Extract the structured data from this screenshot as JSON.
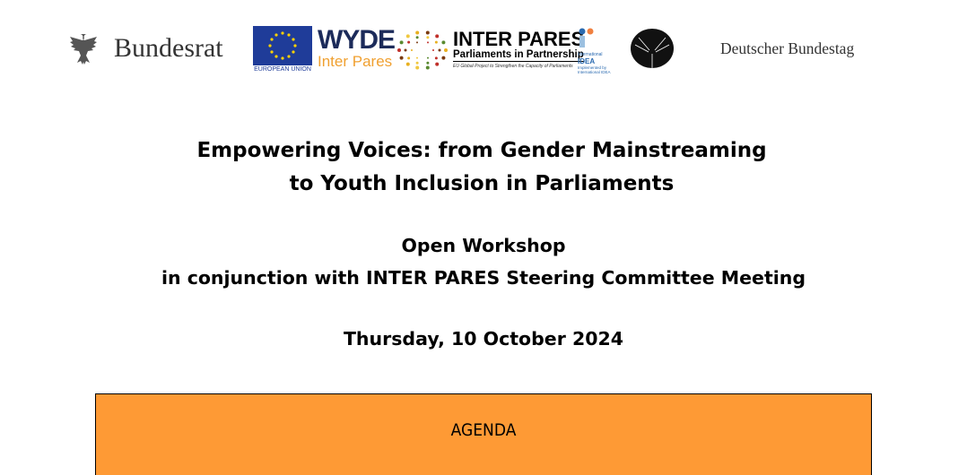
{
  "logos": {
    "bundesrat": "Bundesrat",
    "eu_caption": "EUROPEAN UNION",
    "wyde_line1": "WYDE",
    "wyde_line2": "Inter Pares",
    "interpares_title": "INTER PARES",
    "interpares_subtitle": "Parliaments in Partnership",
    "interpares_tagline": "EU Global Project to Strengthen the Capacity of Parliaments",
    "idea_label1": "International",
    "idea_label2": "IDEA",
    "idea_label3": "Implemented by International IDEA",
    "bundestag": "Deutscher Bundestag"
  },
  "document": {
    "title_line1": "Empowering Voices: from Gender Mainstreaming",
    "title_line2": "to Youth Inclusion in Parliaments",
    "subtitle_line1": "Open Workshop",
    "subtitle_line2": "in conjunction with INTER PARES Steering Committee Meeting",
    "date": "Thursday, 10 October 2024",
    "agenda_header": "AGENDA"
  },
  "colors": {
    "agenda_bg": "#fe9a35",
    "eu_blue": "#1f3c99",
    "wyde_orange": "#f0a030"
  }
}
